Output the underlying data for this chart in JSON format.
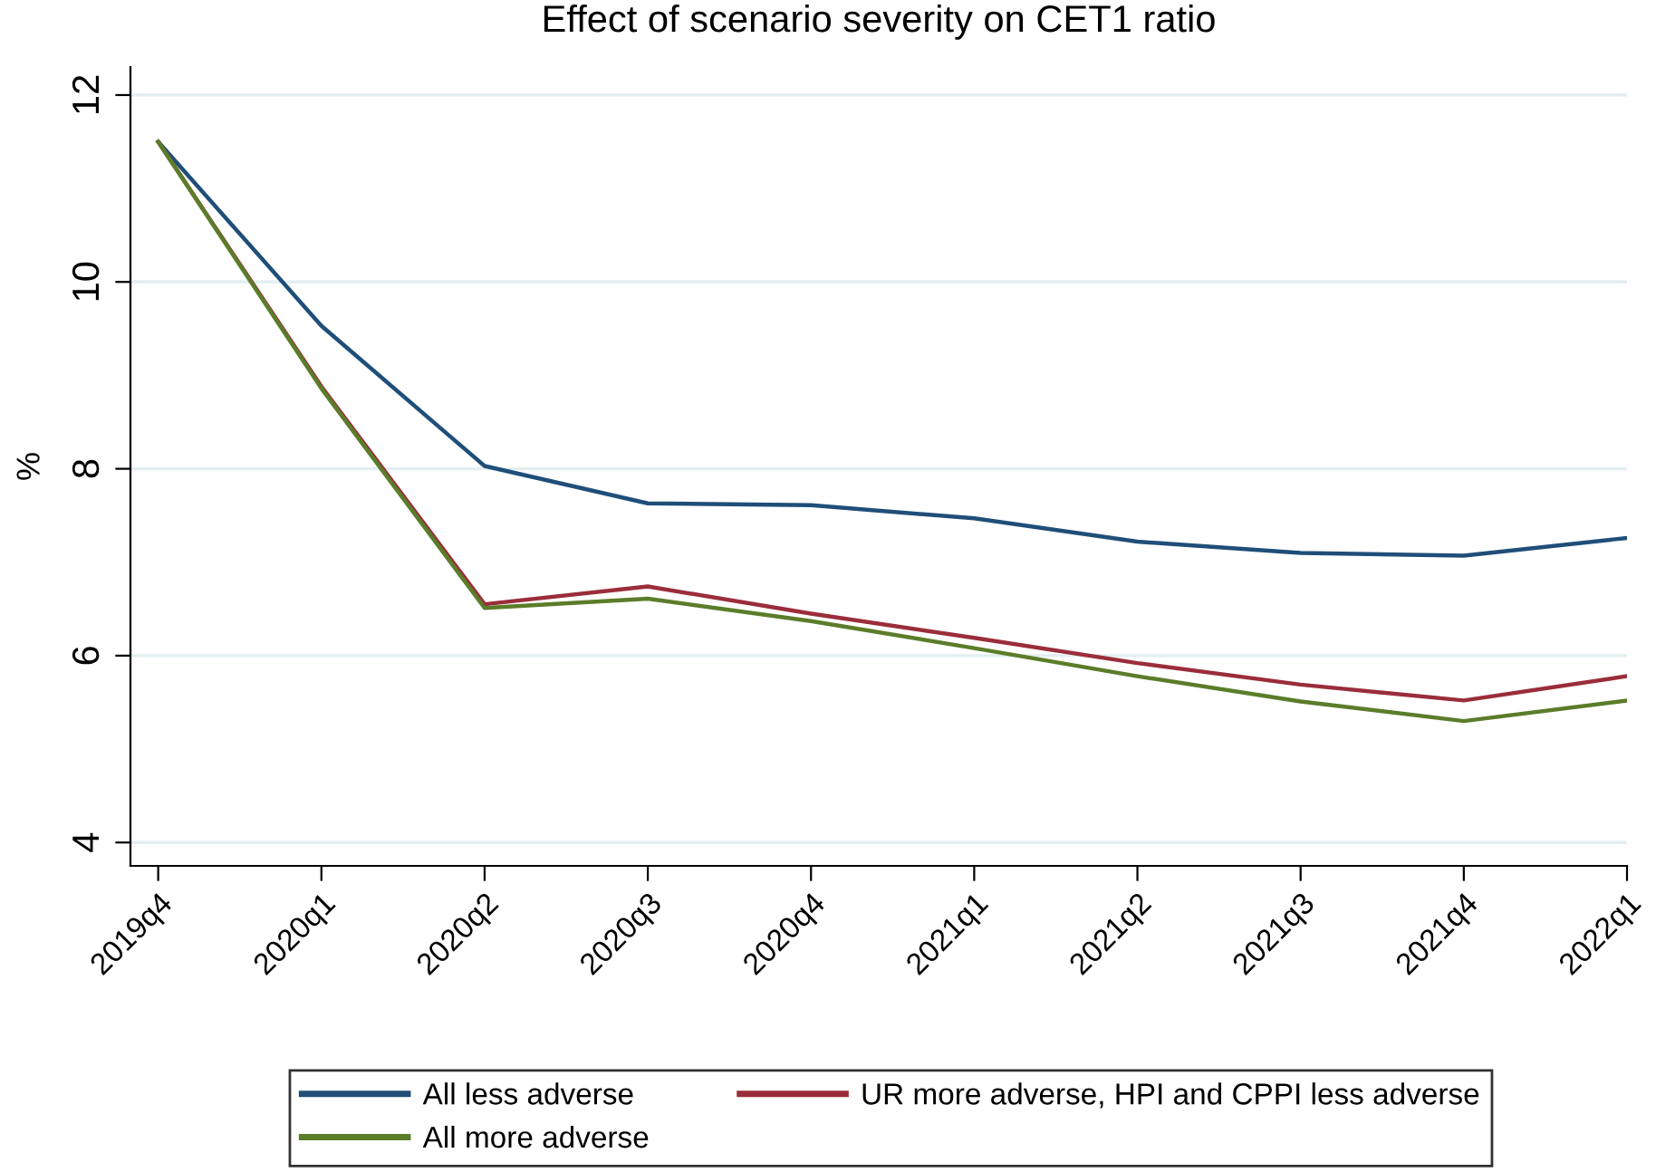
{
  "chart_data": {
    "type": "line",
    "title": "Effect of scenario severity on CET1 ratio",
    "ylabel": "%",
    "categories": [
      "2019q4",
      "2020q1",
      "2020q2",
      "2020q3",
      "2020q4",
      "2021q1",
      "2021q2",
      "2021q3",
      "2021q4",
      "2022q1"
    ],
    "series": [
      {
        "name": "All less adverse",
        "color": "#1f4e79",
        "values": [
          11.5,
          9.53,
          8.03,
          7.63,
          7.61,
          7.47,
          7.22,
          7.1,
          7.07,
          7.26
        ]
      },
      {
        "name": "UR more adverse, HPI and CPPI less adverse",
        "color": "#9b2d3a",
        "values": [
          11.5,
          8.88,
          6.55,
          6.74,
          6.45,
          6.19,
          5.92,
          5.69,
          5.52,
          5.78
        ]
      },
      {
        "name": "All more adverse",
        "color": "#5a7d2a",
        "values": [
          11.5,
          8.86,
          6.51,
          6.61,
          6.37,
          6.08,
          5.78,
          5.51,
          5.3,
          5.52
        ]
      }
    ],
    "ylim": [
      3.75,
      12.3
    ],
    "yticks": [
      4,
      6,
      8,
      10,
      12
    ],
    "grid": "y",
    "legend": "bottom",
    "marker": "none",
    "line_style": "solid"
  }
}
